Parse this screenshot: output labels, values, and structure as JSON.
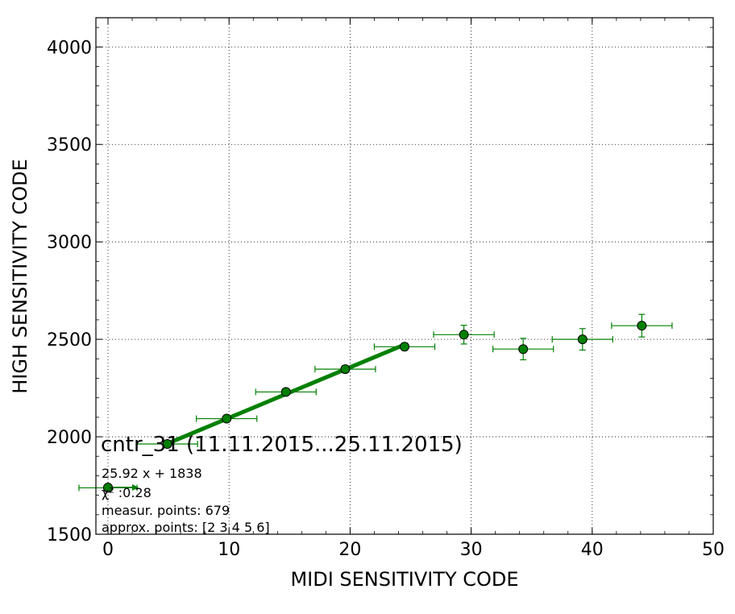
{
  "chart_data": {
    "type": "scatter",
    "xlabel": "MIDI SENSITIVITY CODE",
    "ylabel": "HIGH SENSITIVITY CODE",
    "xlim": [
      -1,
      50
    ],
    "ylim": [
      1500,
      4150
    ],
    "x_ticks": [
      0,
      10,
      20,
      30,
      40,
      50
    ],
    "y_ticks": [
      1500,
      2000,
      2500,
      3000,
      3500,
      4000
    ],
    "grid": true,
    "colors": {
      "points": "#008000",
      "fit_line": "#008000",
      "point_edge": "#000000"
    },
    "series": [
      {
        "values": [
          {
            "x": 0.0,
            "y": 1738,
            "xerr": 2.4,
            "yerr": 0
          },
          {
            "x": 4.9,
            "y": 1963,
            "xerr": 2.5,
            "yerr": 8
          },
          {
            "x": 9.8,
            "y": 2093,
            "xerr": 2.5,
            "yerr": 10
          },
          {
            "x": 14.7,
            "y": 2230,
            "xerr": 2.5,
            "yerr": 16
          },
          {
            "x": 19.6,
            "y": 2347,
            "xerr": 2.5,
            "yerr": 18
          },
          {
            "x": 24.5,
            "y": 2462,
            "xerr": 2.5,
            "yerr": 18
          },
          {
            "x": 29.4,
            "y": 2524,
            "xerr": 2.5,
            "yerr": 48
          },
          {
            "x": 34.3,
            "y": 2450,
            "xerr": 2.5,
            "yerr": 55
          },
          {
            "x": 39.2,
            "y": 2500,
            "xerr": 2.5,
            "yerr": 55
          },
          {
            "x": 44.1,
            "y": 2570,
            "xerr": 2.5,
            "yerr": 58
          }
        ]
      }
    ],
    "fit": {
      "slope": 25.92,
      "intercept": 1838,
      "x_range": [
        4.9,
        24.5
      ]
    },
    "annotations": {
      "title": "cntr_31 (11.11.2015...25.11.2015)",
      "equation": "25.92 x + 1838",
      "chi": "χ² :0.28",
      "measur_points": "measur. points: 679",
      "approx_points": "approx. points: [2 3 4 5 6]"
    }
  }
}
